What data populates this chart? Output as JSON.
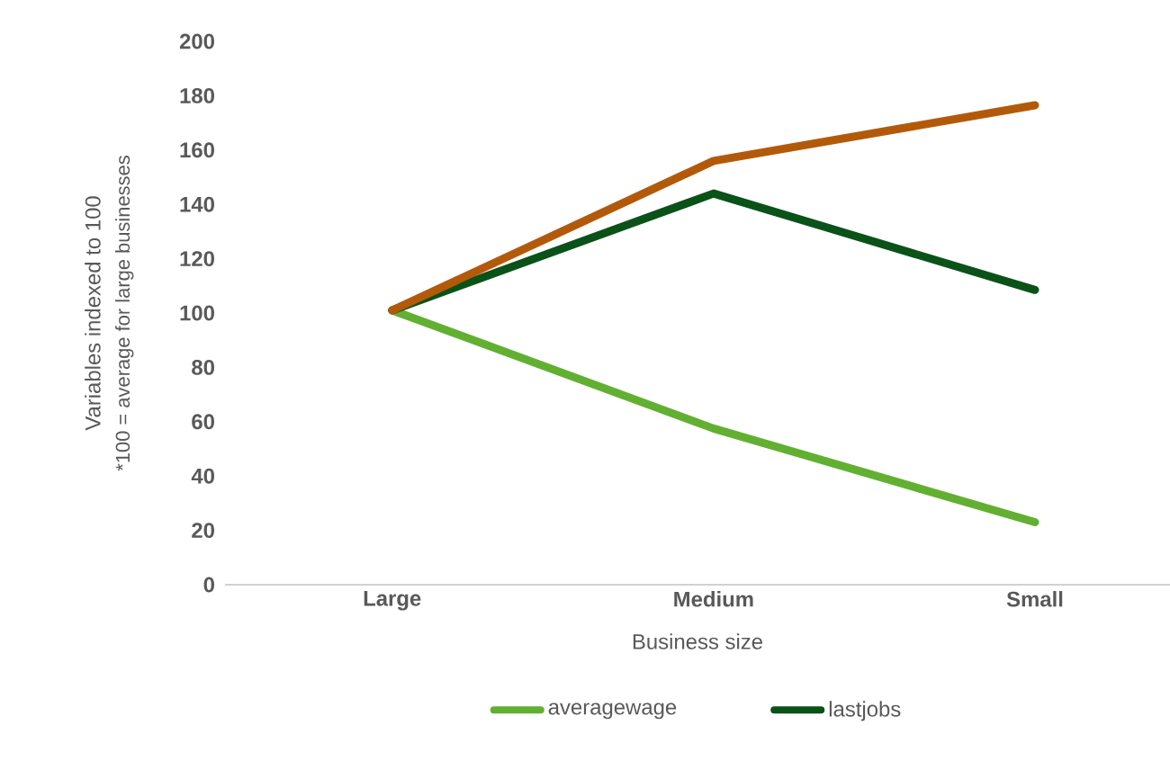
{
  "chart_data": {
    "type": "line",
    "xlabel": "Business size",
    "ylabel": "Variables indexed to 100",
    "annotations": [
      "*100 = average for large businesses"
    ],
    "categories": [
      "Large",
      "Medium",
      "Small"
    ],
    "series": [
      {
        "name": "averagewage",
        "color": "#62b032",
        "values": [
          101,
          57.5,
          23
        ]
      },
      {
        "name": "lastjobs",
        "color": "#0a5218",
        "values": [
          101,
          144,
          108.5
        ]
      },
      {
        "color": "#b35a0a",
        "values": [
          101,
          156,
          176.5
        ]
      }
    ],
    "ylim": [
      0,
      200
    ],
    "yticks": [
      0,
      20,
      40,
      60,
      80,
      100,
      120,
      140,
      160,
      180,
      200
    ],
    "grid": false,
    "legend": "bottom",
    "marker": "none",
    "line_style": "solid"
  }
}
